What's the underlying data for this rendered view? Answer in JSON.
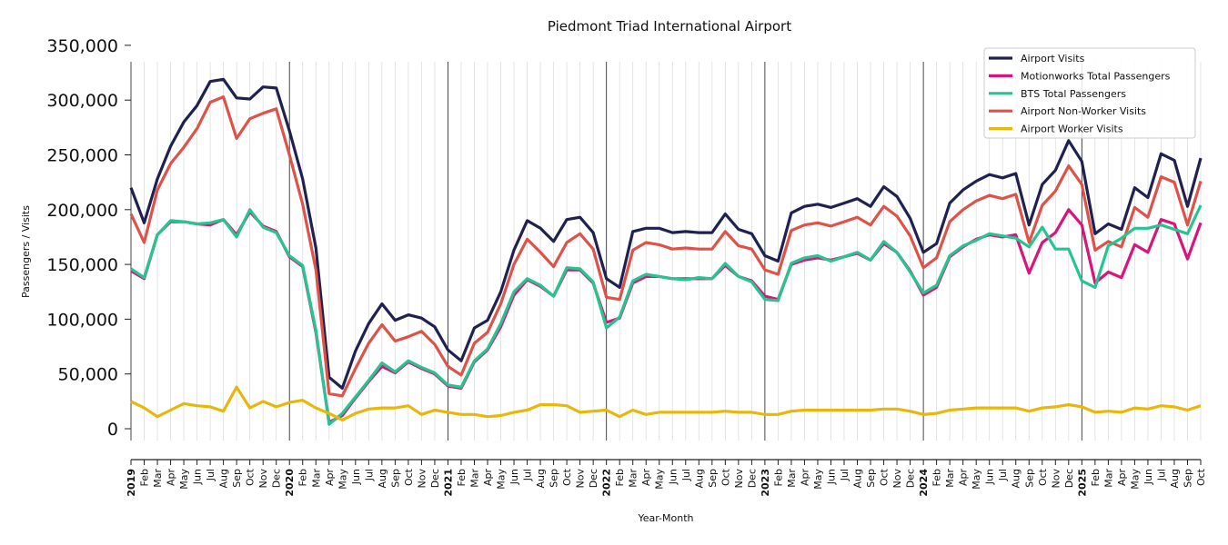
{
  "chart_data": {
    "type": "line",
    "title": "Piedmont Triad International Airport",
    "xlabel": "Year-Month",
    "ylabel": "Passengers / Visits",
    "ylim": [
      -10800,
      335000
    ],
    "yticks": [
      0,
      50000,
      100000,
      150000,
      200000,
      250000,
      300000,
      350000
    ],
    "ytick_labels": [
      "0",
      "50,000",
      "100,000",
      "150,000",
      "200,000",
      "250,000",
      "300,000",
      "350,000"
    ],
    "grid": "vertical monthly, darker at year start",
    "legend_position": "top-right",
    "categories": [
      "2019",
      "Feb",
      "Mar",
      "Apr",
      "May",
      "Jun",
      "Jul",
      "Aug",
      "Sep",
      "Oct",
      "Nov",
      "Dec",
      "2020",
      "Feb",
      "Mar",
      "Apr",
      "May",
      "Jun",
      "Jul",
      "Aug",
      "Sep",
      "Oct",
      "Nov",
      "Dec",
      "2021",
      "Feb",
      "Mar",
      "Apr",
      "May",
      "Jun",
      "Jul",
      "Aug",
      "Sep",
      "Oct",
      "Nov",
      "Dec",
      "2022",
      "Feb",
      "Mar",
      "Apr",
      "May",
      "Jun",
      "Jul",
      "Aug",
      "Sep",
      "Oct",
      "Nov",
      "Dec",
      "2023",
      "Feb",
      "Mar",
      "Apr",
      "May",
      "Jun",
      "Jul",
      "Aug",
      "Sep",
      "Oct",
      "Nov",
      "Dec",
      "2024",
      "Feb",
      "Mar",
      "Apr",
      "May",
      "Jun",
      "Jul",
      "Aug",
      "Sep",
      "Oct",
      "Nov",
      "Dec",
      "2025",
      "Feb",
      "Mar",
      "Apr",
      "May",
      "Jun",
      "Jul",
      "Aug",
      "Sep",
      "Oct"
    ],
    "series": [
      {
        "name": "Airport Visits",
        "color": "#1f2150",
        "values": [
          220000,
          188000,
          228000,
          258000,
          280000,
          295000,
          317000,
          319000,
          302000,
          301000,
          312000,
          311000,
          272000,
          228000,
          165000,
          47000,
          37000,
          71000,
          96000,
          114000,
          99000,
          104000,
          101000,
          93000,
          72000,
          62000,
          92000,
          99000,
          125000,
          163000,
          190000,
          183000,
          171000,
          191000,
          193000,
          179000,
          137000,
          129000,
          180000,
          183000,
          183000,
          179000,
          180000,
          179000,
          179000,
          196000,
          182000,
          178000,
          158000,
          153000,
          197000,
          203000,
          205000,
          202000,
          206000,
          210000,
          203000,
          221000,
          212000,
          192000,
          161000,
          169000,
          206000,
          218000,
          226000,
          232000,
          229000,
          233000,
          186000,
          223000,
          236000,
          263000,
          244000,
          178000,
          187000,
          182000,
          220000,
          211000,
          251000,
          245000,
          203000,
          247000
        ]
      },
      {
        "name": "Motionworks Total Passengers",
        "color": "#d8157c",
        "values": [
          144000,
          137000,
          177000,
          189000,
          189000,
          187000,
          186000,
          191000,
          177000,
          198000,
          185000,
          180000,
          157000,
          148000,
          88000,
          6000,
          12000,
          28000,
          43000,
          57000,
          51000,
          61000,
          55000,
          50000,
          39000,
          37000,
          61000,
          72000,
          93000,
          122000,
          136000,
          130000,
          121000,
          145000,
          145000,
          133000,
          97000,
          101000,
          133000,
          139000,
          139000,
          137000,
          137000,
          137000,
          137000,
          149000,
          139000,
          135000,
          121000,
          118000,
          150000,
          154000,
          156000,
          154000,
          157000,
          160000,
          154000,
          169000,
          161000,
          144000,
          122000,
          129000,
          157000,
          166000,
          173000,
          177000,
          175000,
          177000,
          142000,
          170000,
          179000,
          200000,
          186000,
          133000,
          143000,
          138000,
          168000,
          161000,
          191000,
          187000,
          155000,
          188000
        ]
      },
      {
        "name": "BTS Total Passengers",
        "color": "#26c48f",
        "values": [
          146000,
          138000,
          177000,
          190000,
          189000,
          187000,
          188000,
          191000,
          175000,
          200000,
          184000,
          179000,
          158000,
          149000,
          90000,
          4000,
          14000,
          29000,
          44000,
          60000,
          52000,
          62000,
          56000,
          51000,
          40000,
          38000,
          62000,
          73000,
          96000,
          125000,
          137000,
          131000,
          121000,
          147000,
          146000,
          134000,
          92000,
          102000,
          135000,
          141000,
          139000,
          137000,
          136000,
          138000,
          137000,
          151000,
          139000,
          134000,
          118000,
          117000,
          151000,
          156000,
          158000,
          153000,
          157000,
          161000,
          154000,
          171000,
          161000,
          143000,
          124000,
          131000,
          158000,
          167000,
          172000,
          178000,
          176000,
          174000,
          166000,
          184000,
          164000,
          164000,
          135000,
          129000,
          167000,
          174000,
          183000,
          183000,
          186000,
          182000,
          178000,
          204000
        ]
      },
      {
        "name": "Airport Non-Worker Visits",
        "color": "#dd5349",
        "values": [
          196000,
          170000,
          218000,
          242000,
          257000,
          274000,
          298000,
          303000,
          265000,
          283000,
          288000,
          292000,
          250000,
          205000,
          145000,
          32000,
          30000,
          55000,
          78000,
          95000,
          80000,
          84000,
          89000,
          77000,
          57000,
          49000,
          78000,
          88000,
          114000,
          150000,
          173000,
          161000,
          148000,
          170000,
          178000,
          164000,
          120000,
          118000,
          163000,
          170000,
          168000,
          164000,
          165000,
          164000,
          164000,
          180000,
          167000,
          164000,
          145000,
          141000,
          181000,
          186000,
          188000,
          185000,
          189000,
          193000,
          186000,
          203000,
          194000,
          176000,
          147000,
          156000,
          189000,
          200000,
          208000,
          213000,
          210000,
          214000,
          170000,
          204000,
          217000,
          240000,
          223000,
          163000,
          171000,
          166000,
          202000,
          193000,
          230000,
          225000,
          186000,
          226000
        ]
      },
      {
        "name": "Airport Worker Visits",
        "color": "#e8b70c",
        "values": [
          25000,
          19000,
          11000,
          17000,
          23000,
          21000,
          20000,
          16000,
          38000,
          19000,
          25000,
          20000,
          24000,
          26000,
          19000,
          14000,
          8000,
          14000,
          18000,
          19000,
          19000,
          21000,
          13000,
          17000,
          15000,
          13000,
          13000,
          11000,
          12000,
          15000,
          17000,
          22000,
          22000,
          21000,
          15000,
          16000,
          17000,
          11000,
          17000,
          13000,
          15000,
          15000,
          15000,
          15000,
          15000,
          16000,
          15000,
          15000,
          13000,
          13000,
          16000,
          17000,
          17000,
          17000,
          17000,
          17000,
          17000,
          18000,
          18000,
          16000,
          13000,
          14000,
          17000,
          18000,
          19000,
          19000,
          19000,
          19000,
          16000,
          19000,
          20000,
          22000,
          20000,
          15000,
          16000,
          15000,
          19000,
          18000,
          21000,
          20000,
          17000,
          21000
        ]
      }
    ]
  }
}
